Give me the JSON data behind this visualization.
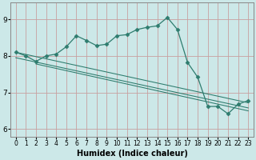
{
  "xlabel": "Humidex (Indice chaleur)",
  "bg_color": "#cce8e8",
  "plot_bg_color": "#cce8e8",
  "line_color": "#2e7c6e",
  "marker_color": "#2e7c6e",
  "grid_color": "#c8a0a0",
  "spine_color": "#888888",
  "font_color": "#000000",
  "xlim": [
    -0.5,
    23.5
  ],
  "ylim": [
    5.8,
    9.45
  ],
  "yticks": [
    6,
    7,
    8,
    9
  ],
  "xticks": [
    0,
    1,
    2,
    3,
    4,
    5,
    6,
    7,
    8,
    9,
    10,
    11,
    12,
    13,
    14,
    15,
    16,
    17,
    18,
    19,
    20,
    21,
    22,
    23
  ],
  "series": [
    [
      0,
      8.1
    ],
    [
      1,
      8.0
    ],
    [
      2,
      7.85
    ],
    [
      3,
      8.0
    ],
    [
      4,
      8.05
    ],
    [
      5,
      8.25
    ],
    [
      6,
      8.55
    ],
    [
      7,
      8.42
    ],
    [
      8,
      8.28
    ],
    [
      9,
      8.32
    ],
    [
      10,
      8.55
    ],
    [
      11,
      8.58
    ],
    [
      12,
      8.72
    ],
    [
      13,
      8.78
    ],
    [
      14,
      8.82
    ],
    [
      15,
      9.05
    ],
    [
      16,
      8.72
    ],
    [
      17,
      7.82
    ],
    [
      18,
      7.42
    ],
    [
      19,
      6.62
    ],
    [
      20,
      6.62
    ],
    [
      21,
      6.42
    ],
    [
      22,
      6.68
    ],
    [
      23,
      6.78
    ]
  ],
  "linear_lines": [
    [
      [
        0,
        8.1
      ],
      [
        23,
        6.72
      ]
    ],
    [
      [
        0,
        7.95
      ],
      [
        23,
        6.58
      ]
    ],
    [
      [
        2,
        7.78
      ],
      [
        23,
        6.5
      ]
    ]
  ],
  "xlabel_fontsize": 7,
  "tick_fontsize_x": 5.5,
  "tick_fontsize_y": 6.5,
  "linewidth": 0.9,
  "markersize": 2.5
}
